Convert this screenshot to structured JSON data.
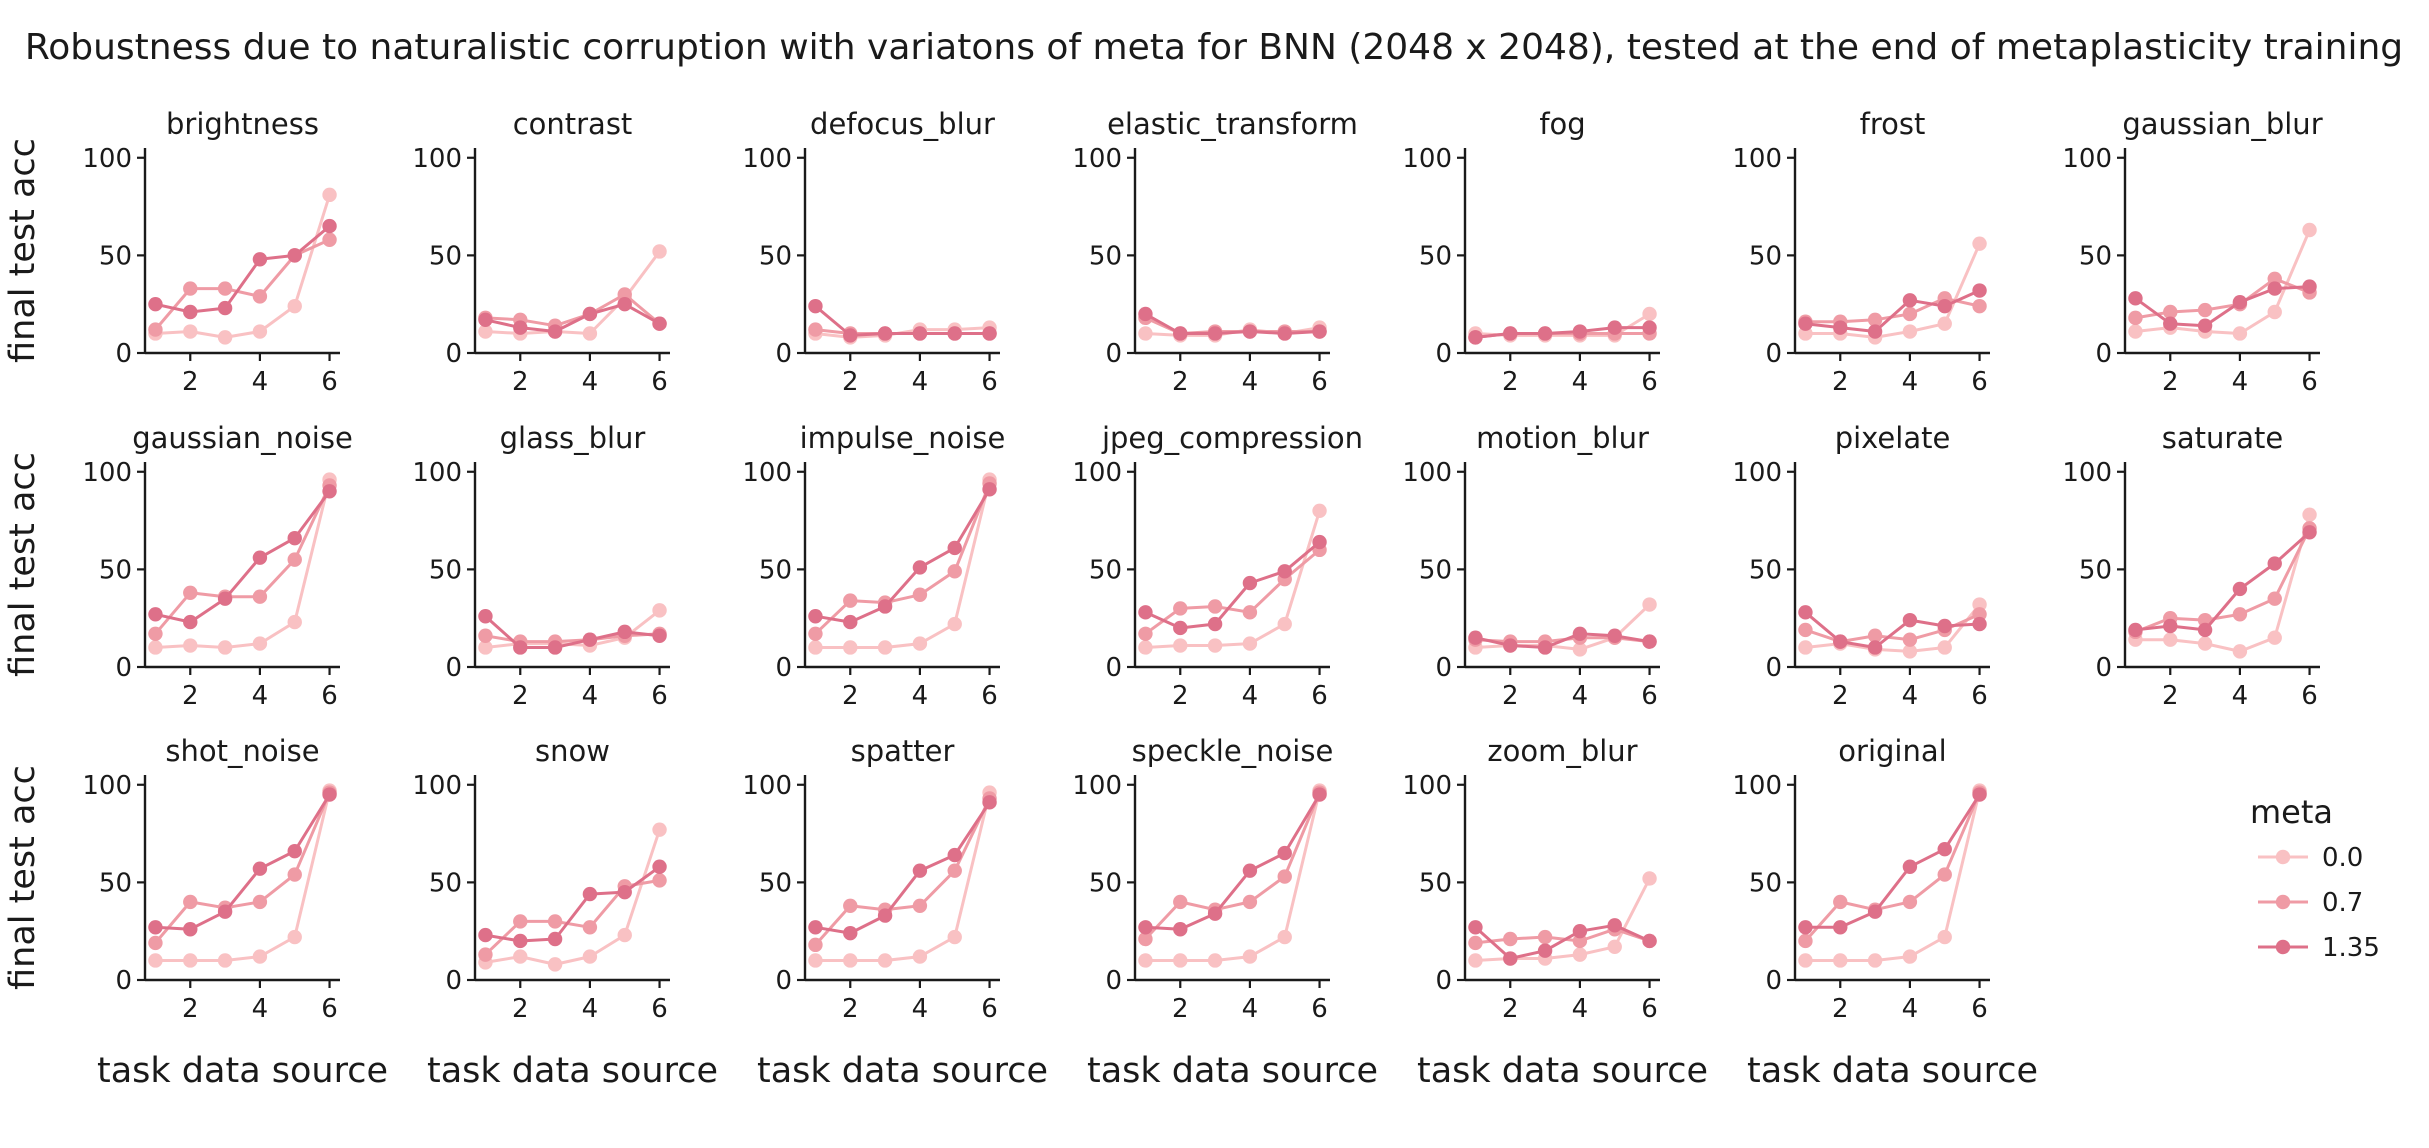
{
  "chart_data": {
    "type": "line",
    "title": "Robustness due to naturalistic corruption with variatons of meta for BNN (2048 x 2048), tested at the end of metaplasticity training",
    "xlabel": "task data source",
    "ylabel": "final test acc",
    "x": [
      1,
      2,
      3,
      4,
      5,
      6
    ],
    "xticks": [
      2,
      4,
      6
    ],
    "xticks_text": [
      "2",
      "4",
      "6"
    ],
    "yticks": [
      0,
      50,
      100
    ],
    "yticks_text": [
      "0",
      "50",
      "100"
    ],
    "ylim": [
      0,
      105
    ],
    "xlim": [
      0.7,
      6.3
    ],
    "grid": false,
    "legend": {
      "title": "meta",
      "placement": "right",
      "entries": [
        {
          "label": "0.0",
          "color": "#f9c1c3"
        },
        {
          "label": "0.7",
          "color": "#ef9ba5"
        },
        {
          "label": "1.35",
          "color": "#de7089"
        }
      ]
    },
    "panels": [
      {
        "title": "brightness",
        "series": [
          [
            10,
            11,
            8,
            11,
            24,
            81
          ],
          [
            12,
            33,
            33,
            29,
            50,
            58
          ],
          [
            25,
            21,
            23,
            48,
            50,
            65
          ]
        ]
      },
      {
        "title": "contrast",
        "series": [
          [
            11,
            10,
            11,
            10,
            28,
            52
          ],
          [
            18,
            17,
            14,
            20,
            30,
            15
          ],
          [
            17,
            13,
            11,
            20,
            25,
            15
          ]
        ]
      },
      {
        "title": "defocus_blur",
        "series": [
          [
            10,
            8,
            9,
            12,
            12,
            13
          ],
          [
            12,
            10,
            10,
            10,
            10,
            10
          ],
          [
            24,
            9,
            10,
            10,
            10,
            10
          ]
        ]
      },
      {
        "title": "elastic_transform",
        "series": [
          [
            10,
            9,
            9,
            12,
            10,
            13
          ],
          [
            18,
            10,
            11,
            11,
            11,
            11
          ],
          [
            20,
            10,
            10,
            11,
            10,
            11
          ]
        ]
      },
      {
        "title": "fog",
        "series": [
          [
            10,
            9,
            9,
            9,
            9,
            20
          ],
          [
            8,
            10,
            10,
            10,
            10,
            10
          ],
          [
            8,
            10,
            10,
            11,
            13,
            13
          ]
        ]
      },
      {
        "title": "frost",
        "series": [
          [
            10,
            10,
            8,
            11,
            15,
            56
          ],
          [
            16,
            16,
            17,
            20,
            28,
            24
          ],
          [
            15,
            13,
            11,
            27,
            24,
            32
          ]
        ]
      },
      {
        "title": "gaussian_blur",
        "series": [
          [
            11,
            13,
            11,
            10,
            21,
            63
          ],
          [
            18,
            21,
            22,
            25,
            38,
            31
          ],
          [
            28,
            15,
            14,
            26,
            33,
            34
          ]
        ]
      },
      {
        "title": "gaussian_noise",
        "series": [
          [
            10,
            11,
            10,
            12,
            23,
            96
          ],
          [
            17,
            38,
            36,
            36,
            55,
            93
          ],
          [
            27,
            23,
            35,
            56,
            66,
            90
          ]
        ]
      },
      {
        "title": "glass_blur",
        "series": [
          [
            10,
            12,
            12,
            11,
            15,
            29
          ],
          [
            16,
            13,
            13,
            14,
            16,
            17
          ],
          [
            26,
            10,
            10,
            14,
            18,
            16
          ]
        ]
      },
      {
        "title": "impulse_noise",
        "series": [
          [
            10,
            10,
            10,
            12,
            22,
            96
          ],
          [
            17,
            34,
            33,
            37,
            49,
            94
          ],
          [
            26,
            23,
            31,
            51,
            61,
            91
          ]
        ]
      },
      {
        "title": "jpeg_compression",
        "series": [
          [
            10,
            11,
            11,
            12,
            22,
            80
          ],
          [
            17,
            30,
            31,
            28,
            45,
            60
          ],
          [
            28,
            20,
            22,
            43,
            49,
            64
          ]
        ]
      },
      {
        "title": "motion_blur",
        "series": [
          [
            10,
            11,
            11,
            9,
            15,
            32
          ],
          [
            14,
            13,
            13,
            15,
            15,
            13
          ],
          [
            15,
            11,
            10,
            17,
            16,
            13
          ]
        ]
      },
      {
        "title": "pixelate",
        "series": [
          [
            10,
            12,
            9,
            8,
            10,
            32
          ],
          [
            19,
            13,
            16,
            14,
            19,
            27
          ],
          [
            28,
            13,
            10,
            24,
            21,
            22
          ]
        ]
      },
      {
        "title": "saturate",
        "series": [
          [
            14,
            14,
            12,
            8,
            15,
            78
          ],
          [
            18,
            25,
            24,
            27,
            35,
            71
          ],
          [
            19,
            21,
            19,
            40,
            53,
            69
          ]
        ]
      },
      {
        "title": "shot_noise",
        "series": [
          [
            10,
            10,
            10,
            12,
            22,
            97
          ],
          [
            19,
            40,
            37,
            40,
            54,
            96
          ],
          [
            27,
            26,
            35,
            57,
            66,
            95
          ]
        ]
      },
      {
        "title": "snow",
        "series": [
          [
            9,
            12,
            8,
            12,
            23,
            77
          ],
          [
            13,
            30,
            30,
            27,
            48,
            51
          ],
          [
            23,
            20,
            21,
            44,
            45,
            58
          ]
        ]
      },
      {
        "title": "spatter",
        "series": [
          [
            10,
            10,
            10,
            12,
            22,
            96
          ],
          [
            18,
            38,
            36,
            38,
            56,
            93
          ],
          [
            27,
            24,
            33,
            56,
            64,
            91
          ]
        ]
      },
      {
        "title": "speckle_noise",
        "series": [
          [
            10,
            10,
            10,
            12,
            22,
            97
          ],
          [
            21,
            40,
            36,
            40,
            53,
            96
          ],
          [
            27,
            26,
            34,
            56,
            65,
            95
          ]
        ]
      },
      {
        "title": "zoom_blur",
        "series": [
          [
            10,
            11,
            11,
            13,
            17,
            52
          ],
          [
            19,
            21,
            22,
            20,
            26,
            20
          ],
          [
            27,
            11,
            15,
            25,
            28,
            20
          ]
        ]
      },
      {
        "title": "original",
        "series": [
          [
            10,
            10,
            10,
            12,
            22,
            97
          ],
          [
            20,
            40,
            36,
            40,
            54,
            96
          ],
          [
            27,
            27,
            35,
            58,
            67,
            95
          ]
        ]
      }
    ]
  }
}
